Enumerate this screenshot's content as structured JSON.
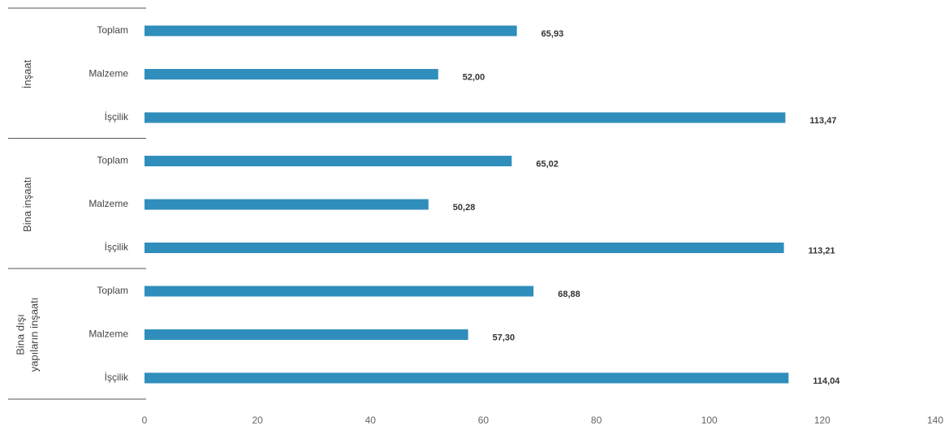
{
  "chart_data": {
    "type": "bar",
    "orientation": "horizontal",
    "color": "#2f8ebb",
    "xlim": [
      0,
      140
    ],
    "xticks": [
      "0",
      "20",
      "40",
      "60",
      "80",
      "100",
      "120",
      "140"
    ],
    "grid": false,
    "legend": "none",
    "groups": [
      {
        "label_lines": [
          "İnşaat"
        ],
        "items": [
          {
            "category": "Toplam",
            "value": 65.93,
            "label": "65,93"
          },
          {
            "category": "Malzeme",
            "value": 52.0,
            "label": "52,00"
          },
          {
            "category": "İşçilik",
            "value": 113.47,
            "label": "113,47"
          }
        ]
      },
      {
        "label_lines": [
          "Bina inşaatı"
        ],
        "items": [
          {
            "category": "Toplam",
            "value": 65.02,
            "label": "65,02"
          },
          {
            "category": "Malzeme",
            "value": 50.28,
            "label": "50,28"
          },
          {
            "category": "İşçilik",
            "value": 113.21,
            "label": "113,21"
          }
        ]
      },
      {
        "label_lines": [
          "Bina dışı",
          "yapıların inşaatı"
        ],
        "items": [
          {
            "category": "Toplam",
            "value": 68.88,
            "label": "68,88"
          },
          {
            "category": "Malzeme",
            "value": 57.3,
            "label": "57,30"
          },
          {
            "category": "İşçilik",
            "value": 114.04,
            "label": "114,04"
          }
        ]
      }
    ]
  }
}
